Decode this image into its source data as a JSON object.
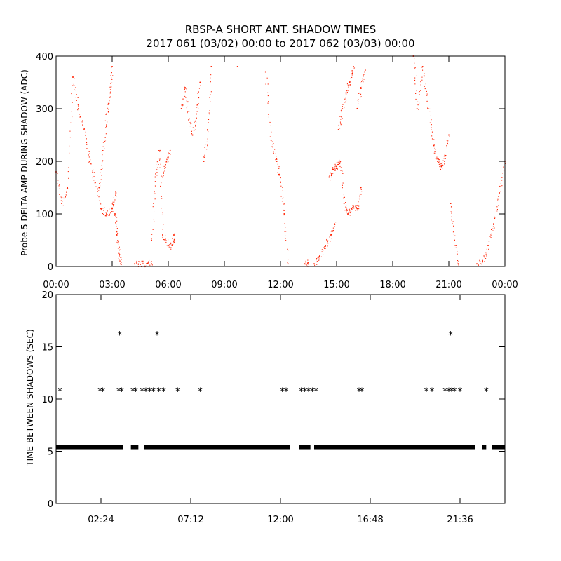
{
  "chart_data": [
    {
      "type": "scatter",
      "title": "RBSP-A SHORT ANT. SHADOW TIMES",
      "subtitle": "2017 061 (03/02) 00:00 to 2017 062 (03/03) 00:00",
      "xlabel": "",
      "ylabel": "Probe 5 DELTA AMP DURING SHADOW (ADC)",
      "x_unit": "hours",
      "xlim": [
        0,
        24
      ],
      "ylim": [
        0,
        400
      ],
      "x_ticks": [
        0,
        3,
        6,
        9,
        12,
        15,
        18,
        21,
        24
      ],
      "x_tick_labels": [
        "00:00",
        "03:00",
        "06:00",
        "09:00",
        "12:00",
        "15:00",
        "18:00",
        "21:00",
        "00:00"
      ],
      "y_ticks": [
        0,
        100,
        200,
        300,
        400
      ],
      "y_tick_labels": [
        "0",
        "100",
        "200",
        "300",
        "400"
      ],
      "point_color": "#ff2000",
      "grid": false,
      "series": [
        {
          "segments": [
            {
              "x": [
                0.0,
                0.3,
                0.6,
                0.9,
                1.2,
                1.5,
                1.8,
                2.1,
                2.4,
                2.7,
                3.0,
                3.2
              ],
              "y": [
                180,
                120,
                150,
                360,
                300,
                260,
                200,
                160,
                110,
                100,
                110,
                140
              ]
            },
            {
              "x": [
                2.3,
                2.5,
                2.7,
                2.9,
                3.0
              ],
              "y": [
                150,
                220,
                290,
                330,
                380
              ]
            },
            {
              "x": [
                3.15,
                3.25,
                3.35,
                3.45
              ],
              "y": [
                100,
                60,
                25,
                5
              ]
            },
            {
              "x": [
                4.2,
                4.5,
                4.9,
                5.1
              ],
              "y": [
                5,
                4,
                6,
                5
              ]
            },
            {
              "x": [
                5.1,
                5.3,
                5.5,
                5.7,
                6.0,
                6.2,
                6.3
              ],
              "y": [
                50,
                170,
                220,
                60,
                40,
                40,
                60
              ]
            },
            {
              "x": [
                5.7,
                5.9,
                6.1
              ],
              "y": [
                170,
                200,
                220
              ]
            },
            {
              "x": [
                6.7,
                6.9,
                7.1,
                7.3,
                7.5,
                7.7
              ],
              "y": [
                300,
                340,
                280,
                250,
                290,
                350
              ]
            },
            {
              "x": [
                7.9,
                8.1,
                8.3
              ],
              "y": [
                200,
                260,
                380
              ]
            },
            {
              "x": [
                9.7
              ],
              "y": [
                380
              ]
            },
            {
              "x": [
                11.2,
                11.5,
                11.8,
                12.0,
                12.2,
                12.4
              ],
              "y": [
                370,
                240,
                200,
                160,
                100,
                5
              ]
            },
            {
              "x": [
                13.3,
                13.5
              ],
              "y": [
                5,
                8
              ]
            },
            {
              "x": [
                13.8,
                14.1,
                14.4,
                14.7,
                14.9
              ],
              "y": [
                5,
                20,
                40,
                60,
                80
              ]
            },
            {
              "x": [
                14.6,
                14.8,
                15.0,
                15.2,
                15.4,
                15.6,
                15.8,
                16.1,
                16.3
              ],
              "y": [
                170,
                185,
                190,
                200,
                120,
                100,
                110,
                110,
                150
              ]
            },
            {
              "x": [
                15.1,
                15.3,
                15.5,
                15.7,
                15.9
              ],
              "y": [
                260,
                300,
                330,
                350,
                380
              ]
            },
            {
              "x": [
                16.1,
                16.3,
                16.5
              ],
              "y": [
                300,
                340,
                370
              ]
            },
            {
              "x": [
                19.1,
                19.3,
                19.6,
                19.9,
                20.2,
                20.4,
                20.6,
                20.8,
                21.0
              ],
              "y": [
                400,
                300,
                380,
                300,
                230,
                200,
                190,
                210,
                250
              ]
            },
            {
              "x": [
                21.1,
                21.3,
                21.5
              ],
              "y": [
                120,
                50,
                5
              ]
            },
            {
              "x": [
                22.5,
                22.8,
                23.1,
                23.4,
                23.7,
                24.0
              ],
              "y": [
                5,
                10,
                40,
                80,
                140,
                200
              ]
            }
          ]
        }
      ]
    },
    {
      "type": "scatter",
      "title": "",
      "xlabel": "",
      "ylabel": "TIME BETWEEN SHADOWS (SEC)",
      "x_unit": "hours",
      "xlim": [
        0,
        24
      ],
      "ylim": [
        0,
        20
      ],
      "x_ticks": [
        2.4,
        7.2,
        12.0,
        16.8,
        21.6
      ],
      "x_tick_labels": [
        "02:24",
        "07:12",
        "12:00",
        "16:48",
        "21:36"
      ],
      "y_ticks": [
        0,
        5,
        10,
        15,
        20
      ],
      "y_tick_labels": [
        "0",
        "5",
        "10",
        "15",
        "20"
      ],
      "marker": "*",
      "point_color": "#000000",
      "baseline": {
        "value": 5.4,
        "ranges": [
          [
            0.0,
            3.6
          ],
          [
            4.0,
            4.4
          ],
          [
            4.7,
            12.5
          ],
          [
            13.0,
            13.6
          ],
          [
            13.8,
            22.4
          ],
          [
            22.8,
            23.0
          ],
          [
            23.3,
            24.0
          ]
        ]
      },
      "series": [
        {
          "x": [
            0.2,
            2.35,
            2.5,
            3.35,
            3.5,
            4.1,
            4.25,
            4.6,
            4.8,
            5.0,
            5.2,
            5.5,
            5.75,
            6.5,
            7.7,
            12.1,
            12.3,
            13.1,
            13.3,
            13.5,
            13.7,
            13.9,
            16.2,
            16.35,
            19.8,
            20.1,
            20.8,
            21.0,
            21.15,
            21.3,
            21.6,
            23.0
          ],
          "y": [
            10.8,
            10.8,
            10.8,
            10.8,
            10.8,
            10.8,
            10.8,
            10.8,
            10.8,
            10.8,
            10.8,
            10.8,
            10.8,
            10.8,
            10.8,
            10.8,
            10.8,
            10.8,
            10.8,
            10.8,
            10.8,
            10.8,
            10.8,
            10.8,
            10.8,
            10.8,
            10.8,
            10.8,
            10.8,
            10.8,
            10.8,
            10.8
          ]
        },
        {
          "x": [
            3.4,
            5.4,
            21.1
          ],
          "y": [
            16.2,
            16.2,
            16.2
          ]
        }
      ]
    }
  ]
}
